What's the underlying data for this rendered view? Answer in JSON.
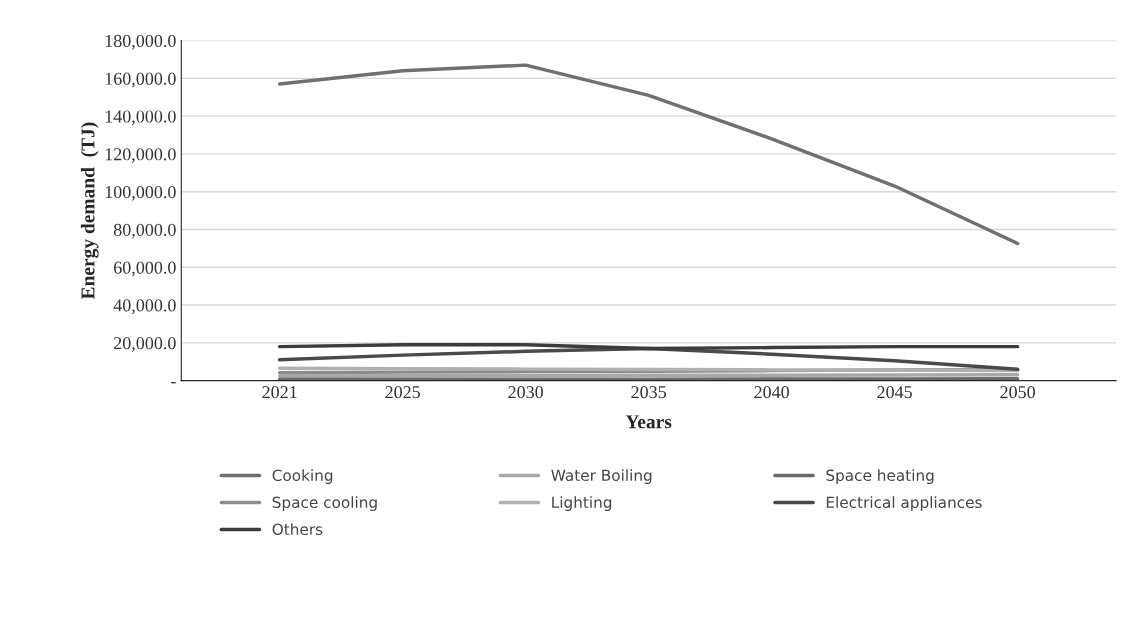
{
  "chart_data": {
    "type": "line",
    "xlabel": "Years",
    "ylabel": "Energy demand  (TJ)",
    "categories": [
      "2021",
      "2025",
      "2030",
      "2035",
      "2040",
      "2045",
      "2050"
    ],
    "series": [
      {
        "name": "Cooking",
        "color": "#707070",
        "values": [
          157000,
          164000,
          167000,
          151000,
          128000,
          103000,
          72600
        ]
      },
      {
        "name": "Water Boiling",
        "color": "#a8a8a8",
        "values": [
          2500,
          2600,
          2700,
          2800,
          2900,
          3000,
          3100
        ]
      },
      {
        "name": "Space heating",
        "color": "#6a6a6a",
        "values": [
          700,
          700,
          800,
          800,
          900,
          900,
          1000
        ]
      },
      {
        "name": "Space cooling",
        "color": "#8c8c8c",
        "values": [
          4200,
          4500,
          4800,
          5000,
          5300,
          5600,
          5800
        ]
      },
      {
        "name": "Lighting",
        "color": "#b0b0b0",
        "values": [
          6500,
          6300,
          6100,
          5900,
          5700,
          5500,
          5300
        ]
      },
      {
        "name": "Electrical appliances",
        "color": "#4a4a4a",
        "values": [
          11000,
          13500,
          15500,
          17000,
          14000,
          10500,
          6000
        ]
      },
      {
        "name": "Others",
        "color": "#3c3c3c",
        "values": [
          18000,
          19000,
          19000,
          17000,
          17500,
          18000,
          18000
        ]
      }
    ],
    "ylim": [
      0,
      180000
    ],
    "yticks": [
      {
        "value": 0,
        "label": "-"
      },
      {
        "value": 20000,
        "label": "20,000.0"
      },
      {
        "value": 40000,
        "label": "40,000.0"
      },
      {
        "value": 60000,
        "label": "60,000.0"
      },
      {
        "value": 80000,
        "label": "80,000.0"
      },
      {
        "value": 100000,
        "label": "100,000.0"
      },
      {
        "value": 120000,
        "label": "120,000.0"
      },
      {
        "value": 140000,
        "label": "140,000.0"
      },
      {
        "value": 160000,
        "label": "160,000.0"
      },
      {
        "value": 180000,
        "label": "180,000.0"
      }
    ],
    "grid": "y",
    "legend": "bottom",
    "line_style": "solid",
    "marker": "none"
  }
}
